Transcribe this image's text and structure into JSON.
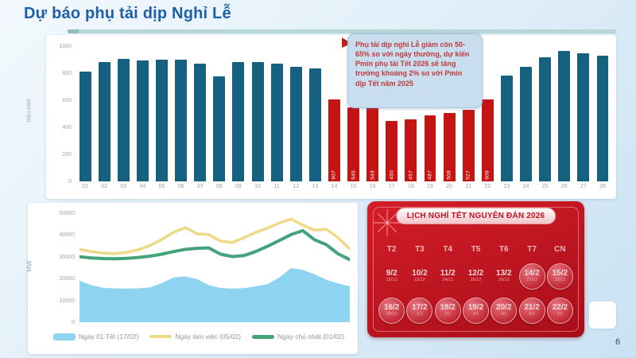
{
  "page": {
    "title": "Dự báo phụ tải dịp Nghỉ Lễ",
    "page_number": "6"
  },
  "annotation": {
    "text": "Phụ tải dịp nghỉ Lễ giảm còn 50-65% so với ngày thường, dự kiến Pmin phụ tải Tết 2026 sẽ tăng trưởng khoảng 2% so với Pmin dịp Tết năm 2025"
  },
  "colors": {
    "title_blue": "#1e5fa6",
    "bar_blue": "#15617f",
    "bar_red": "#c51414",
    "area_blue": "#8ed3f0",
    "line_yellow": "#eed987",
    "line_green": "#45a37b",
    "calendar_red": "#c0141f",
    "annotation_text_red": "#c03a3a"
  },
  "chart_data": [
    {
      "type": "bar",
      "title": "",
      "xlabel": "",
      "ylabel": "triệu kWh",
      "ylim": [
        0,
        1000
      ],
      "yticks": [
        0,
        200,
        400,
        600,
        800,
        1000
      ],
      "grid": false,
      "categories": [
        "01",
        "02",
        "03",
        "04",
        "05",
        "06",
        "07",
        "08",
        "09",
        "10",
        "11",
        "12",
        "13",
        "14",
        "15",
        "16",
        "17",
        "18",
        "19",
        "20",
        "21",
        "22",
        "23",
        "24",
        "25",
        "26",
        "27",
        "28"
      ],
      "values": [
        812,
        880,
        905,
        894,
        900,
        900,
        870,
        776,
        882,
        882,
        870,
        847,
        835,
        607,
        546,
        549,
        450,
        457,
        487,
        508,
        527,
        608,
        782,
        845,
        918,
        965,
        947,
        929
      ],
      "holiday_indices": [
        13,
        14,
        15,
        16,
        17,
        18,
        19,
        20,
        21
      ],
      "note": "holiday bars (days 14-22) are red and carry vertical white value labels; other bars blue"
    },
    {
      "type": "line",
      "title": "",
      "xlabel": "",
      "ylabel": "MW",
      "ylim": [
        0,
        50000
      ],
      "yticks": [
        0,
        10000,
        20000,
        30000,
        40000,
        50000
      ],
      "grid": false,
      "legend_position": "bottom",
      "x": [
        0,
        1,
        2,
        3,
        4,
        5,
        6,
        7,
        8,
        9,
        10,
        11,
        12,
        13,
        14,
        15,
        16,
        17,
        18,
        19,
        20,
        21,
        22,
        23
      ],
      "series": [
        {
          "name": "Ngày 01 Tết (17/02)",
          "style": "area",
          "color": "#8ed3f0",
          "values": [
            19000,
            17000,
            15800,
            15500,
            15400,
            15500,
            16000,
            18000,
            20500,
            21000,
            19800,
            17000,
            15700,
            15400,
            15600,
            16500,
            17500,
            20500,
            24800,
            24000,
            22000,
            19500,
            17800,
            16500
          ]
        },
        {
          "name": "Ngày làm việc (05/02)",
          "style": "line",
          "color": "#eed987",
          "width": 3.5,
          "values": [
            33400,
            32400,
            31700,
            31500,
            32000,
            33200,
            35200,
            38000,
            41200,
            43400,
            40600,
            40200,
            37200,
            36600,
            38800,
            41200,
            43200,
            45500,
            47300,
            44500,
            42200,
            42600,
            38800,
            33600
          ]
        },
        {
          "name": "Ngày chủ nhật (01/02)",
          "style": "line",
          "color": "#45a37b",
          "width": 4,
          "values": [
            30000,
            29500,
            29200,
            29100,
            29300,
            29700,
            30300,
            31200,
            32400,
            33400,
            33900,
            34100,
            31200,
            30100,
            30600,
            32400,
            34800,
            37500,
            40200,
            42000,
            37800,
            35600,
            31400,
            28700
          ]
        }
      ]
    }
  ],
  "calendar": {
    "title": "LỊCH NGHỈ TẾT NGUYÊN ĐÁN 2026",
    "weekdays": [
      "T2",
      "T3",
      "T4",
      "T5",
      "T6",
      "T7",
      "CN"
    ],
    "rows": [
      [
        {
          "solar": "9/2",
          "lunar": "22/12",
          "holiday": false
        },
        {
          "solar": "10/2",
          "lunar": "23/12",
          "holiday": false
        },
        {
          "solar": "11/2",
          "lunar": "24/12",
          "holiday": false
        },
        {
          "solar": "12/2",
          "lunar": "25/12",
          "holiday": false
        },
        {
          "solar": "13/2",
          "lunar": "26/12",
          "holiday": false
        },
        {
          "solar": "14/2",
          "lunar": "27/12",
          "holiday": true
        },
        {
          "solar": "15/2",
          "lunar": "28/12",
          "holiday": true
        }
      ],
      [
        {
          "solar": "16/2",
          "lunar": "29/12",
          "holiday": true
        },
        {
          "solar": "17/2",
          "lunar": "1/1",
          "holiday": true
        },
        {
          "solar": "18/2",
          "lunar": "2/1",
          "holiday": true
        },
        {
          "solar": "19/2",
          "lunar": "3/1",
          "holiday": true
        },
        {
          "solar": "20/2",
          "lunar": "4/1",
          "holiday": true
        },
        {
          "solar": "21/2",
          "lunar": "5/1",
          "holiday": true
        },
        {
          "solar": "22/2",
          "lunar": "6/1",
          "holiday": true
        }
      ]
    ]
  }
}
